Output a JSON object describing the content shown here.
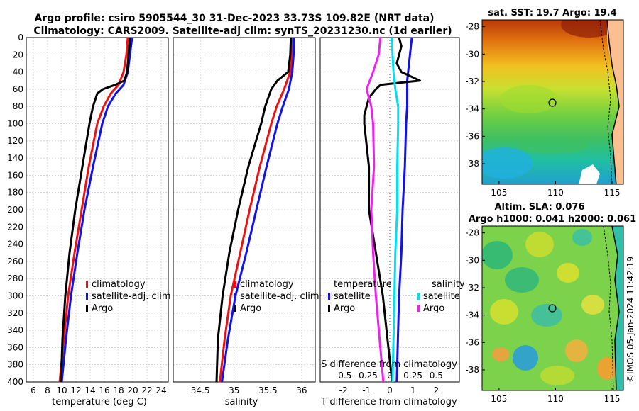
{
  "header": {
    "line1": "Argo profile: csiro 5905544_30 31-Dec-2023 33.73S 109.82E (NRT data)",
    "line2": "Climatology: CARS2009. Satellite-adj clim: synTS_20231230.nc (1d earlier)"
  },
  "watermark": "©IMOS 05-Jan-2024 11:42:19",
  "colors": {
    "climatology": "#ee1111",
    "satellite": "#1111ee",
    "argo": "#000000",
    "sal_satellite": "#00e0f0",
    "sal_argo": "#ee22ee"
  },
  "chart_data": [
    {
      "id": "temperature-panel",
      "type": "line",
      "xlabel": "temperature (deg C)",
      "ylabel": "",
      "xlim": [
        5,
        25
      ],
      "ylim": [
        400,
        0
      ],
      "xticks": [
        6,
        8,
        10,
        12,
        14,
        16,
        18,
        20,
        22,
        24
      ],
      "yticks": [
        0,
        20,
        40,
        60,
        80,
        100,
        120,
        140,
        160,
        180,
        200,
        220,
        240,
        260,
        280,
        300,
        320,
        340,
        360,
        380,
        400
      ],
      "legend": [
        "climatology",
        "satellite-adj. clim",
        "Argo"
      ],
      "series": [
        {
          "name": "climatology",
          "color": "#ee1111",
          "depth": [
            0,
            20,
            40,
            55,
            65,
            80,
            100,
            150,
            200,
            250,
            300,
            350,
            400
          ],
          "values": [
            19.3,
            19.1,
            18.7,
            18.0,
            16.9,
            15.9,
            15.0,
            13.8,
            12.8,
            11.8,
            10.9,
            10.3,
            9.7
          ]
        },
        {
          "name": "satellite-adj. clim",
          "color": "#1111ee",
          "depth": [
            0,
            20,
            40,
            55,
            65,
            80,
            100,
            150,
            200,
            250,
            300,
            350,
            400
          ],
          "values": [
            19.9,
            19.6,
            19.3,
            18.7,
            17.6,
            16.5,
            15.7,
            14.4,
            13.2,
            12.2,
            11.3,
            10.6,
            10.0
          ]
        },
        {
          "name": "Argo",
          "color": "#000000",
          "depth": [
            0,
            20,
            40,
            50,
            55,
            60,
            65,
            70,
            80,
            100,
            150,
            200,
            250,
            300,
            350,
            400
          ],
          "values": [
            19.6,
            19.4,
            19.2,
            18.8,
            17.5,
            15.8,
            15.0,
            14.8,
            14.4,
            13.9,
            12.9,
            11.9,
            11.1,
            10.5,
            10.1,
            9.9
          ]
        }
      ]
    },
    {
      "id": "salinity-panel",
      "type": "line",
      "xlabel": "salinity",
      "ylabel": "",
      "xlim": [
        34.1,
        36.2
      ],
      "ylim": [
        400,
        0
      ],
      "xticks": [
        34.5,
        35,
        35.5,
        36
      ],
      "xticklabels": [
        "34.5",
        "35",
        "35.5",
        "36"
      ],
      "legend": [
        "climatology",
        "satellite-adj. clim",
        "Argo"
      ],
      "series": [
        {
          "name": "climatology",
          "color": "#ee1111",
          "depth": [
            0,
            20,
            40,
            60,
            80,
            100,
            150,
            200,
            250,
            300,
            350,
            400
          ],
          "values": [
            35.86,
            35.85,
            35.83,
            35.74,
            35.63,
            35.55,
            35.38,
            35.23,
            35.09,
            34.95,
            34.86,
            34.79
          ]
        },
        {
          "name": "satellite-adj. clim",
          "color": "#1111ee",
          "depth": [
            0,
            20,
            40,
            60,
            80,
            100,
            150,
            200,
            250,
            300,
            350,
            400
          ],
          "values": [
            35.88,
            35.88,
            35.86,
            35.81,
            35.72,
            35.64,
            35.48,
            35.33,
            35.18,
            35.02,
            34.91,
            34.82
          ]
        },
        {
          "name": "Argo",
          "color": "#000000",
          "depth": [
            0,
            20,
            40,
            50,
            60,
            80,
            100,
            150,
            200,
            250,
            300,
            350,
            400
          ],
          "values": [
            35.84,
            35.83,
            35.8,
            35.64,
            35.55,
            35.46,
            35.4,
            35.21,
            35.06,
            34.93,
            34.83,
            34.76,
            34.74
          ]
        }
      ]
    },
    {
      "id": "difference-panel",
      "type": "line",
      "xlabel": "T difference from climatology",
      "xlabel_top": "S difference from climatology",
      "xlim": [
        -3,
        3
      ],
      "ylim": [
        400,
        0
      ],
      "xticks": [
        -2,
        -1,
        0,
        1,
        2
      ],
      "s_xticks": [
        -0.5,
        -0.25,
        0,
        0.25,
        0.5
      ],
      "s_xticklabels": [
        "-0.5",
        "-0.25",
        "0",
        "0.25",
        "0.5"
      ],
      "legend_left_title": "temperature",
      "legend_right_title": "salinity",
      "legend_left": [
        "satellite",
        "Argo"
      ],
      "legend_right": [
        "satellite",
        "Argo"
      ],
      "series": [
        {
          "name": "T satellite",
          "color": "#1111ee",
          "depth": [
            0,
            50,
            80,
            100,
            150,
            200,
            250,
            300,
            350,
            400
          ],
          "values": [
            0.95,
            0.75,
            0.75,
            0.7,
            0.65,
            0.55,
            0.5,
            0.4,
            0.35,
            0.3
          ]
        },
        {
          "name": "T Argo",
          "color": "#000000",
          "depth": [
            0,
            10,
            20,
            30,
            40,
            50,
            55,
            60,
            70,
            80,
            90,
            100,
            150,
            200,
            250,
            300,
            350,
            400
          ],
          "values": [
            0.4,
            0.5,
            0.4,
            0.3,
            0.5,
            1.3,
            -0.4,
            -0.6,
            -0.9,
            -1.0,
            -1.1,
            -1.1,
            -0.9,
            -0.9,
            -0.6,
            -0.3,
            -0.1,
            0.1
          ]
        },
        {
          "name": "S satellite",
          "color": "#00e0f0",
          "depth": [
            0,
            20,
            40,
            60,
            80,
            100,
            150,
            200,
            250,
            300,
            350,
            400
          ],
          "values": [
            0.02,
            0.03,
            0.04,
            0.06,
            0.09,
            0.09,
            0.08,
            0.08,
            0.06,
            0.05,
            0.04,
            0.03
          ]
        },
        {
          "name": "S Argo",
          "color": "#ee22ee",
          "depth": [
            0,
            20,
            40,
            60,
            80,
            100,
            150,
            200,
            250,
            300,
            350,
            400
          ],
          "values": [
            -0.1,
            -0.12,
            -0.18,
            -0.25,
            -0.2,
            -0.18,
            -0.17,
            -0.2,
            -0.18,
            -0.15,
            -0.11,
            -0.07
          ]
        }
      ]
    },
    {
      "id": "sst-map",
      "type": "heatmap",
      "title": "sat. SST: 19.7 Argo: 19.4",
      "xticks": [
        105,
        110,
        115
      ],
      "yticks": [
        -28,
        -30,
        -32,
        -34,
        -36,
        -38
      ],
      "xlim": [
        103.5,
        116
      ],
      "ylim": [
        -39.5,
        -27.5
      ],
      "marker": {
        "lon": 109.82,
        "lat": -33.73
      }
    },
    {
      "id": "sla-map",
      "type": "heatmap",
      "title_line1": "Altim. SLA: 0.076",
      "title_line2": "Argo h1000: 0.041 h2000: 0.061",
      "xticks": [
        105,
        110,
        115
      ],
      "yticks": [
        -28,
        -30,
        -32,
        -34,
        -36,
        -38
      ],
      "xlim": [
        103.5,
        116
      ],
      "ylim": [
        -39.5,
        -27.5
      ],
      "marker": {
        "lon": 109.82,
        "lat": -33.73
      }
    }
  ]
}
